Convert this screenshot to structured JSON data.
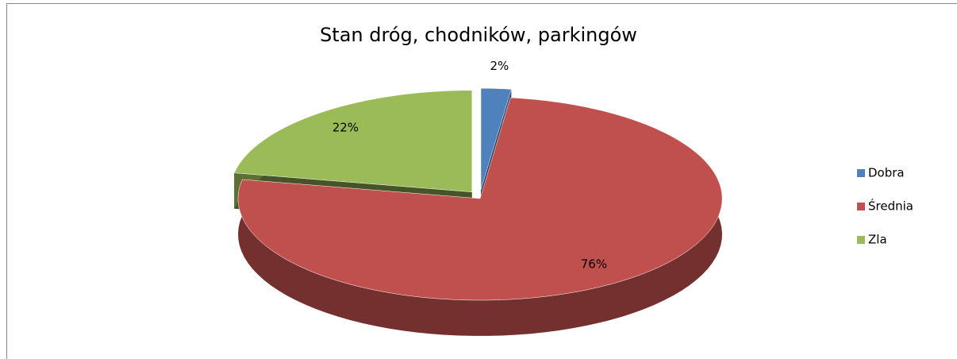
{
  "chart_data": {
    "type": "pie3d",
    "title": "Stan dróg, chodników, parkingów",
    "categories": [
      "Dobra",
      "Średnia",
      "Zla"
    ],
    "values": [
      2,
      76,
      22
    ],
    "value_labels": [
      "2%",
      "76%",
      "22%"
    ],
    "colors": [
      "#4f81bd",
      "#c0504d",
      "#9bbb59"
    ],
    "legend": "right"
  }
}
